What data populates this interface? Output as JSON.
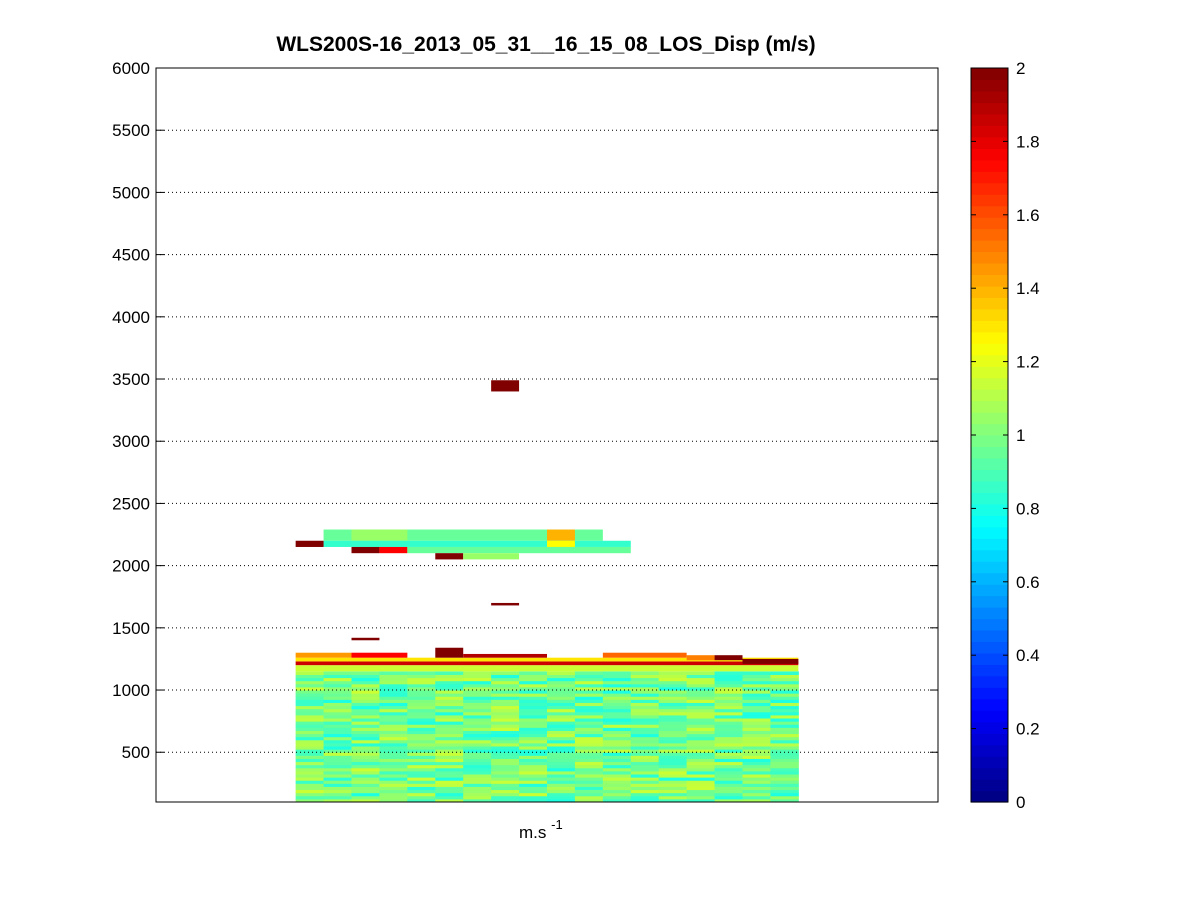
{
  "chart_data": {
    "type": "heatmap",
    "title": "WLS200S-16_2013_05_31__16_15_08_LOS_Disp (m/s)",
    "xlabel": "m.s",
    "xlabel_superscript": "-1",
    "ylabel": "",
    "ylim": [
      100,
      6000
    ],
    "yticks": [
      500,
      1000,
      1500,
      2000,
      2500,
      3000,
      3500,
      4000,
      4500,
      5000,
      5500,
      6000
    ],
    "y_grid": "dotted",
    "x_grid": false,
    "colormap": "jet",
    "colorbar": {
      "range": [
        0,
        2
      ],
      "ticks": [
        0,
        0.2,
        0.4,
        0.6,
        0.8,
        1,
        1.2,
        1.4,
        1.6,
        1.8,
        2
      ],
      "tick_labels": [
        "0",
        "0.2",
        "0.4",
        "0.6",
        "0.8",
        "1",
        "1.2",
        "1.4",
        "1.6",
        "1.8",
        "2"
      ],
      "placement": "right"
    },
    "columns": 18,
    "column_range": [
      5,
      22
    ],
    "x_extent": [
      0,
      28
    ],
    "background_field": {
      "column_start": 5,
      "column_end": 22,
      "y_from": 100,
      "y_to": 1150,
      "bin_height": 25,
      "value_range": [
        0.8,
        1.15
      ],
      "typical_value": 0.97
    },
    "features": [
      {
        "from_column": 5,
        "to_column": 22,
        "y_from": 1150,
        "y_to": 1200,
        "value": 1.15,
        "label": "boundary-layer-top-green"
      },
      {
        "from_column": 5,
        "to_column": 22,
        "y_from": 1200,
        "y_to": 1230,
        "value": 1.85,
        "label": "boundary-layer-top-red"
      },
      {
        "from_column": 5,
        "to_column": 22,
        "y_from": 1230,
        "y_to": 1260,
        "value": 1.3,
        "label": "boundary-layer-top-yellow"
      },
      {
        "from_column": 5,
        "to_column": 6,
        "y_from": 1260,
        "y_to": 1300,
        "value": 1.45
      },
      {
        "from_column": 7,
        "to_column": 8,
        "y_from": 1260,
        "y_to": 1300,
        "value": 1.75
      },
      {
        "from_column": 10,
        "to_column": 10,
        "y_from": 1260,
        "y_to": 1340,
        "value": 2.0
      },
      {
        "from_column": 11,
        "to_column": 13,
        "y_from": 1260,
        "y_to": 1290,
        "value": 1.9
      },
      {
        "from_column": 16,
        "to_column": 18,
        "y_from": 1260,
        "y_to": 1300,
        "value": 1.55
      },
      {
        "from_column": 19,
        "to_column": 19,
        "y_from": 1240,
        "y_to": 1280,
        "value": 1.5
      },
      {
        "from_column": 20,
        "to_column": 20,
        "y_from": 1240,
        "y_to": 1280,
        "value": 2.0
      },
      {
        "from_column": 21,
        "to_column": 22,
        "y_from": 1210,
        "y_to": 1250,
        "value": 2.0
      },
      {
        "from_column": 7,
        "to_column": 7,
        "y_from": 1400,
        "y_to": 1420,
        "value": 2.0
      },
      {
        "from_column": 12,
        "to_column": 12,
        "y_from": 1680,
        "y_to": 1700,
        "value": 2.0
      },
      {
        "from_column": 6,
        "to_column": 15,
        "y_from": 2200,
        "y_to": 2290,
        "value": 0.95
      },
      {
        "from_column": 7,
        "to_column": 8,
        "y_from": 2200,
        "y_to": 2290,
        "value": 1.05
      },
      {
        "from_column": 14,
        "to_column": 14,
        "y_from": 2200,
        "y_to": 2290,
        "value": 1.4
      },
      {
        "from_column": 6,
        "to_column": 16,
        "y_from": 2150,
        "y_to": 2200,
        "value": 0.85
      },
      {
        "from_column": 14,
        "to_column": 14,
        "y_from": 2150,
        "y_to": 2200,
        "value": 1.25
      },
      {
        "from_column": 5,
        "to_column": 5,
        "y_from": 2150,
        "y_to": 2200,
        "value": 2.0
      },
      {
        "from_column": 7,
        "to_column": 7,
        "y_from": 2100,
        "y_to": 2150,
        "value": 2.0
      },
      {
        "from_column": 8,
        "to_column": 8,
        "y_from": 2100,
        "y_to": 2150,
        "value": 1.75
      },
      {
        "from_column": 9,
        "to_column": 16,
        "y_from": 2100,
        "y_to": 2150,
        "value": 0.95
      },
      {
        "from_column": 10,
        "to_column": 10,
        "y_from": 2050,
        "y_to": 2100,
        "value": 2.0
      },
      {
        "from_column": 11,
        "to_column": 12,
        "y_from": 2050,
        "y_to": 2100,
        "value": 1.05
      },
      {
        "from_column": 12,
        "to_column": 12,
        "y_from": 3400,
        "y_to": 3490,
        "value": 2.0
      }
    ]
  }
}
